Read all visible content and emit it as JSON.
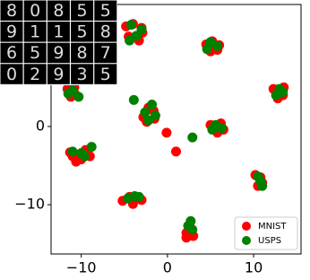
{
  "chart_data": {
    "type": "scatter",
    "inset_digits": [
      [
        "8",
        "0",
        "8",
        "5",
        "5"
      ],
      [
        "9",
        "1",
        "1",
        "5",
        "8"
      ],
      [
        "6",
        "5",
        "9",
        "8",
        "7"
      ],
      [
        "0",
        "2",
        "9",
        "3",
        "5"
      ]
    ],
    "series": [
      {
        "name": "MNIST",
        "color": "#ff0000",
        "x": [
          -4.8,
          -3.0,
          -4.5,
          -3.3,
          -2.9,
          -4.0,
          4.5,
          6.0,
          5.0,
          5.8,
          5.2,
          12.3,
          13.4,
          12.8,
          13.5,
          -11.6,
          -10.6,
          -11.2,
          -10.8,
          -2.8,
          -1.6,
          -2.4,
          -1.5,
          -2.2,
          5.0,
          6.5,
          5.8,
          6.2,
          -11.3,
          -10.0,
          -9.0,
          -10.6,
          -9.5,
          -11.0,
          10.2,
          11.0,
          10.5,
          10.8,
          -5.2,
          -4.0,
          -3.0,
          -4.4,
          2.2,
          3.0,
          2.6,
          2.2,
          -0.1,
          1.0
        ],
        "y": [
          12.8,
          12.6,
          11.5,
          11.0,
          12.0,
          13.1,
          10.5,
          10.4,
          9.6,
          9.8,
          10.9,
          4.8,
          4.0,
          3.6,
          5.0,
          4.8,
          4.0,
          3.8,
          5.0,
          1.2,
          2.0,
          0.6,
          1.0,
          2.4,
          0.2,
          -0.4,
          -0.8,
          0.4,
          -3.3,
          -4.2,
          -3.8,
          -4.5,
          -3.0,
          -3.8,
          -6.2,
          -7.2,
          -7.6,
          -6.5,
          -9.5,
          -9.9,
          -9.4,
          -9.0,
          -13.6,
          -14.0,
          -12.8,
          -14.2,
          -0.8,
          -3.2
        ]
      },
      {
        "name": "USPS",
        "color": "#008000",
        "x": [
          -4.2,
          -3.6,
          -4.4,
          -3.0,
          5.0,
          5.8,
          4.6,
          13.0,
          12.6,
          13.4,
          -11.0,
          -10.3,
          -11.5,
          -1.8,
          -2.6,
          -1.4,
          -2.2,
          5.6,
          6.3,
          5.2,
          -8.8,
          -10.0,
          -11.0,
          -9.6,
          10.8,
          11.0,
          10.5,
          -3.8,
          -4.6,
          -3.3,
          2.7,
          2.4,
          2.9,
          2.9,
          -3.9
        ],
        "y": [
          13.0,
          11.6,
          11.0,
          12.4,
          10.8,
          10.3,
          9.9,
          4.8,
          4.0,
          4.4,
          4.6,
          3.8,
          4.2,
          2.8,
          1.8,
          1.4,
          0.8,
          0.2,
          -0.2,
          -0.4,
          -2.6,
          -3.4,
          -3.2,
          -3.8,
          -7.0,
          -7.6,
          -6.4,
          -8.9,
          -9.2,
          -9.0,
          -12.1,
          -12.7,
          -13.2,
          -1.4,
          3.4
        ]
      }
    ],
    "xlim": [
      -13.5,
      15.5
    ],
    "ylim": [
      -16.3,
      15.6
    ],
    "xticks": [
      {
        "value": -10,
        "label": "−10"
      },
      0,
      10
    ],
    "yticks": [
      {
        "value": -10,
        "label": "−10"
      },
      0
    ],
    "legend": "lower right"
  }
}
